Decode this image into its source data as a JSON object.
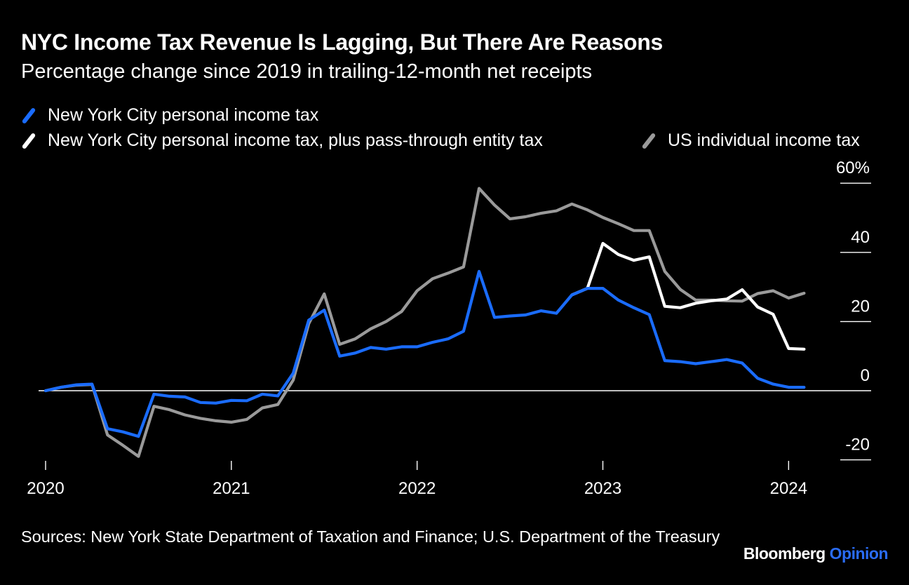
{
  "title": "NYC Income Tax Revenue Is Lagging, But There Are Reasons",
  "subtitle": "Percentage change since 2019 in trailing-12-month net receipts",
  "source": "Sources: New York State Department of Taxation and Finance; U.S. Department of the Treasury",
  "brand": {
    "primary": "Bloomberg",
    "secondary": "Opinion"
  },
  "colors": {
    "background": "#000000",
    "blue": "#1a6cff",
    "white": "#ffffff",
    "gray": "#9a9a9a",
    "accent": "#2a6cf5"
  },
  "chart_data": {
    "type": "line",
    "x_start": "2020-01",
    "x_ticks": [
      "2020",
      "2021",
      "2022",
      "2023",
      "2024"
    ],
    "y_ticks": [
      "60%",
      "40",
      "20",
      "0",
      "-20"
    ],
    "y_tick_values": [
      60,
      40,
      20,
      0,
      -20
    ],
    "ylim": [
      -20,
      60
    ],
    "legend_position": "top",
    "series": [
      {
        "name": "New York City personal income tax",
        "color": "#1a6cff",
        "x": [
          "2020-01",
          "2020-02",
          "2020-03",
          "2020-04",
          "2020-05",
          "2020-06",
          "2020-07",
          "2020-08",
          "2020-09",
          "2020-10",
          "2020-11",
          "2020-12",
          "2021-01",
          "2021-02",
          "2021-03",
          "2021-04",
          "2021-05",
          "2021-06",
          "2021-07",
          "2021-08",
          "2021-09",
          "2021-10",
          "2021-11",
          "2021-12",
          "2022-01",
          "2022-02",
          "2022-03",
          "2022-04",
          "2022-05",
          "2022-06",
          "2022-07",
          "2022-08",
          "2022-09",
          "2022-10",
          "2022-11",
          "2022-12",
          "2023-01",
          "2023-02",
          "2023-03",
          "2023-04",
          "2023-05",
          "2023-06",
          "2023-07",
          "2023-08",
          "2023-09",
          "2023-10",
          "2023-11",
          "2023-12",
          "2024-01",
          "2024-02"
        ],
        "values": [
          0,
          1,
          1.7,
          1.9,
          -11,
          -11.9,
          -13.2,
          -1,
          -1.6,
          -1.8,
          -3.4,
          -3.6,
          -2.8,
          -2.9,
          -1,
          -1.5,
          5.1,
          20.4,
          23.3,
          10,
          10.9,
          12.5,
          12,
          12.7,
          12.7,
          14,
          15,
          17.2,
          34.5,
          21.2,
          21.6,
          21.9,
          23.1,
          22.4,
          27.7,
          29.6,
          29.6,
          26.2,
          24,
          22,
          8.7,
          8.4,
          7.8,
          8.4,
          9,
          8,
          3.6,
          1.9,
          1,
          1
        ]
      },
      {
        "name": "New York City personal income tax, plus pass-through entity tax",
        "color": "#ffffff",
        "x": [
          "2022-11",
          "2022-12",
          "2023-01",
          "2023-02",
          "2023-03",
          "2023-04",
          "2023-05",
          "2023-06",
          "2023-07",
          "2023-08",
          "2023-09",
          "2023-10",
          "2023-11",
          "2023-12",
          "2024-01",
          "2024-02"
        ],
        "values": [
          27.7,
          29.6,
          42.6,
          39.4,
          37.7,
          38.7,
          24.4,
          24,
          25.3,
          26,
          26.5,
          29.2,
          24.2,
          22.1,
          12.2,
          12
        ]
      },
      {
        "name": "US individual income tax",
        "color": "#9a9a9a",
        "x": [
          "2020-01",
          "2020-02",
          "2020-03",
          "2020-04",
          "2020-05",
          "2020-06",
          "2020-07",
          "2020-08",
          "2020-09",
          "2020-10",
          "2020-11",
          "2020-12",
          "2021-01",
          "2021-02",
          "2021-03",
          "2021-04",
          "2021-05",
          "2021-06",
          "2021-07",
          "2021-08",
          "2021-09",
          "2021-10",
          "2021-11",
          "2021-12",
          "2022-01",
          "2022-02",
          "2022-03",
          "2022-04",
          "2022-05",
          "2022-06",
          "2022-07",
          "2022-08",
          "2022-09",
          "2022-10",
          "2022-11",
          "2022-12",
          "2023-01",
          "2023-02",
          "2023-03",
          "2023-04",
          "2023-05",
          "2023-06",
          "2023-07",
          "2023-08",
          "2023-09",
          "2023-10",
          "2023-11",
          "2023-12",
          "2024-01",
          "2024-02"
        ],
        "values": [
          0,
          1,
          1.6,
          1.8,
          -12.8,
          -15.8,
          -19,
          -4.5,
          -5.5,
          -7,
          -8,
          -8.7,
          -9.1,
          -8.3,
          -5,
          -4,
          3.1,
          19.4,
          28,
          13.4,
          15,
          17.9,
          20,
          22.9,
          28.9,
          32.4,
          34,
          35.8,
          58.5,
          53.7,
          49.7,
          50.3,
          51.3,
          52,
          54,
          52.3,
          50.1,
          48.3,
          46.3,
          46.3,
          34.5,
          29.3,
          26.2,
          26.2,
          26,
          25.9,
          28.1,
          28.9,
          26.8,
          28.2
        ]
      }
    ]
  }
}
